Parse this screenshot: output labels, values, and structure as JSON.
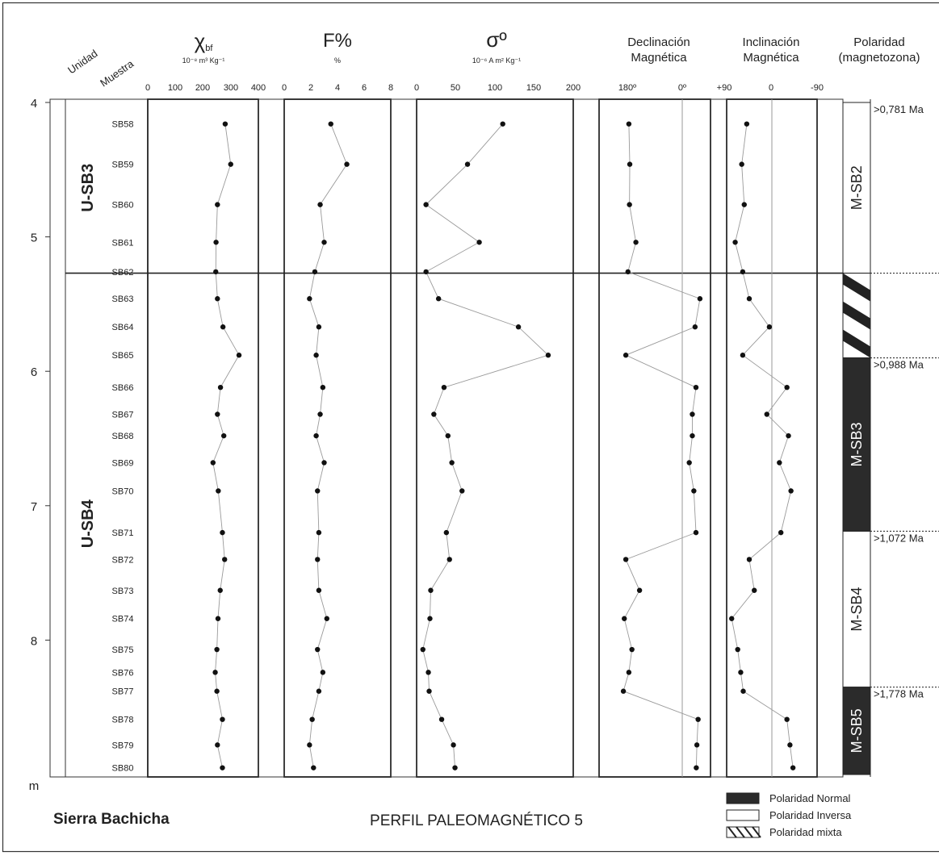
{
  "page": {
    "location": "Sierra Bachicha",
    "title": "PERFIL PALEOMAGNÉTICO 5"
  },
  "headers": {
    "unidad": "Unidad",
    "muestra": "Muestra",
    "chi_symbol": "χ",
    "chi_sub": "bf",
    "chi_units": "10⁻⁸ m³ Kg⁻¹",
    "f_title": "F%",
    "f_units": "%",
    "sigma_title": "σº",
    "sigma_units": "10⁻⁶ A m² Kg⁻¹",
    "decl_line1": "Declinación",
    "decl_line2": "Magnética",
    "incl_line1": "Inclinación",
    "incl_line2": "Magnética",
    "pol_line1": "Polaridad",
    "pol_line2": "(magnetozona)"
  },
  "units": [
    {
      "name": "U-SB3",
      "from": 4.0,
      "to": 5.27
    },
    {
      "name": "U-SB4",
      "from": 5.27,
      "to": 9.0
    }
  ],
  "legend": [
    {
      "label": "Polaridad Normal",
      "type": "normal"
    },
    {
      "label": "Polaridad Inversa",
      "type": "inversa"
    },
    {
      "label": "Polaridad mixta",
      "type": "mixta"
    }
  ],
  "chart_data": {
    "type": "scatter",
    "y_axis": {
      "range": [
        4.0,
        9.0
      ],
      "ticks": [
        "4",
        "5",
        "6",
        "7",
        "8"
      ],
      "unit_label": "m"
    },
    "columns": [
      {
        "key": "chi",
        "range": [
          0,
          400
        ],
        "ticks": [
          "0",
          "100",
          "200",
          "300",
          "400"
        ]
      },
      {
        "key": "f",
        "range": [
          0,
          8
        ],
        "ticks": [
          "0",
          "2",
          "4",
          "6",
          "8"
        ]
      },
      {
        "key": "sigma",
        "range": [
          0,
          200
        ],
        "ticks": [
          "0",
          "50",
          "100",
          "150",
          "200"
        ]
      },
      {
        "key": "decl",
        "range": [
          180,
          0
        ],
        "ticks": [
          "180º",
          "0º"
        ],
        "reference_line": 0
      },
      {
        "key": "incl",
        "range": [
          90,
          -90
        ],
        "ticks": [
          "+90",
          "0",
          "-90"
        ],
        "reference_line": 0
      }
    ],
    "samples": [
      {
        "id": "SB58",
        "depth": 4.16,
        "chi": 280,
        "f": 3.5,
        "sigma": 110,
        "decl": 175,
        "incl": 50
      },
      {
        "id": "SB59",
        "depth": 4.46,
        "chi": 300,
        "f": 4.7,
        "sigma": 65,
        "decl": 172,
        "incl": 60
      },
      {
        "id": "SB60",
        "depth": 4.76,
        "chi": 252,
        "f": 2.7,
        "sigma": 12,
        "decl": 173,
        "incl": 55
      },
      {
        "id": "SB61",
        "depth": 5.04,
        "chi": 247,
        "f": 3.0,
        "sigma": 80,
        "decl": 152,
        "incl": 73
      },
      {
        "id": "SB62",
        "depth": 5.26,
        "chi": 246,
        "f": 2.3,
        "sigma": 12,
        "decl": 178,
        "incl": 58
      },
      {
        "id": "SB63",
        "depth": 5.46,
        "chi": 252,
        "f": 1.9,
        "sigma": 28,
        "decl": -58,
        "incl": 45
      },
      {
        "id": "SB64",
        "depth": 5.67,
        "chi": 272,
        "f": 2.6,
        "sigma": 130,
        "decl": -42,
        "incl": 5
      },
      {
        "id": "SB65",
        "depth": 5.88,
        "chi": 330,
        "f": 2.4,
        "sigma": 168,
        "decl": 185,
        "incl": 58
      },
      {
        "id": "SB66",
        "depth": 6.12,
        "chi": 263,
        "f": 2.9,
        "sigma": 35,
        "decl": -45,
        "incl": -30
      },
      {
        "id": "SB67",
        "depth": 6.32,
        "chi": 252,
        "f": 2.7,
        "sigma": 22,
        "decl": -33,
        "incl": 10
      },
      {
        "id": "SB68",
        "depth": 6.48,
        "chi": 275,
        "f": 2.4,
        "sigma": 40,
        "decl": -33,
        "incl": -33
      },
      {
        "id": "SB69",
        "depth": 6.68,
        "chi": 236,
        "f": 3.0,
        "sigma": 45,
        "decl": -23,
        "incl": -15
      },
      {
        "id": "SB70",
        "depth": 6.89,
        "chi": 255,
        "f": 2.5,
        "sigma": 58,
        "decl": -38,
        "incl": -38
      },
      {
        "id": "SB71",
        "depth": 7.2,
        "chi": 270,
        "f": 2.6,
        "sigma": 38,
        "decl": -45,
        "incl": -18
      },
      {
        "id": "SB72",
        "depth": 7.4,
        "chi": 278,
        "f": 2.5,
        "sigma": 42,
        "decl": 185,
        "incl": 45
      },
      {
        "id": "SB73",
        "depth": 7.63,
        "chi": 262,
        "f": 2.6,
        "sigma": 18,
        "decl": 140,
        "incl": 35
      },
      {
        "id": "SB74",
        "depth": 7.84,
        "chi": 254,
        "f": 3.2,
        "sigma": 17,
        "decl": 190,
        "incl": 80
      },
      {
        "id": "SB75",
        "depth": 8.07,
        "chi": 250,
        "f": 2.5,
        "sigma": 8,
        "decl": 165,
        "incl": 68
      },
      {
        "id": "SB76",
        "depth": 8.24,
        "chi": 244,
        "f": 2.9,
        "sigma": 15,
        "decl": 175,
        "incl": 62
      },
      {
        "id": "SB77",
        "depth": 8.38,
        "chi": 250,
        "f": 2.6,
        "sigma": 16,
        "decl": 193,
        "incl": 57
      },
      {
        "id": "SB78",
        "depth": 8.59,
        "chi": 270,
        "f": 2.1,
        "sigma": 32,
        "decl": -52,
        "incl": -30
      },
      {
        "id": "SB79",
        "depth": 8.78,
        "chi": 252,
        "f": 1.9,
        "sigma": 47,
        "decl": -48,
        "incl": -36
      },
      {
        "id": "SB80",
        "depth": 8.95,
        "chi": 270,
        "f": 2.2,
        "sigma": 49,
        "decl": -46,
        "incl": -42
      }
    ],
    "polarity_zones": [
      {
        "name": "M-SB2",
        "from": 4.0,
        "to": 5.27,
        "type": "inversa",
        "age": ">0,781 Ma"
      },
      {
        "name": "",
        "from": 5.27,
        "to": 5.9,
        "type": "mixta",
        "age": ""
      },
      {
        "name": "M-SB3",
        "from": 5.9,
        "to": 7.19,
        "type": "normal",
        "age": ">0,988 Ma"
      },
      {
        "name": "M-SB4",
        "from": 7.19,
        "to": 8.35,
        "type": "inversa",
        "age": ">1,072 Ma"
      },
      {
        "name": "M-SB5",
        "from": 8.35,
        "to": 9.0,
        "type": "normal",
        "age": ">1,778 Ma"
      }
    ]
  }
}
